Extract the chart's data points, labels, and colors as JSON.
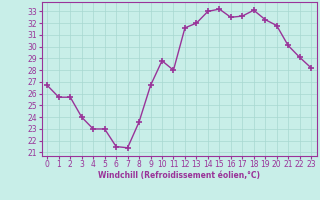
{
  "x": [
    0,
    1,
    2,
    3,
    4,
    5,
    6,
    7,
    8,
    9,
    10,
    11,
    12,
    13,
    14,
    15,
    16,
    17,
    18,
    19,
    20,
    21,
    22,
    23
  ],
  "y": [
    26.7,
    25.7,
    25.7,
    24.0,
    23.0,
    23.0,
    21.5,
    21.4,
    23.6,
    26.7,
    28.8,
    28.0,
    31.6,
    32.0,
    33.0,
    33.2,
    32.5,
    32.6,
    33.1,
    32.3,
    31.8,
    30.1,
    29.1,
    28.2
  ],
  "line_color": "#993399",
  "marker": "+",
  "markersize": 4,
  "linewidth": 1.0,
  "bg_color": "#c8eee8",
  "grid_color": "#a8d8d0",
  "xlabel": "Windchill (Refroidissement éolien,°C)",
  "xlabel_color": "#993399",
  "tick_color": "#993399",
  "yticks": [
    21,
    22,
    23,
    24,
    25,
    26,
    27,
    28,
    29,
    30,
    31,
    32,
    33
  ],
  "xticks": [
    0,
    1,
    2,
    3,
    4,
    5,
    6,
    7,
    8,
    9,
    10,
    11,
    12,
    13,
    14,
    15,
    16,
    17,
    18,
    19,
    20,
    21,
    22,
    23
  ],
  "ylim": [
    20.7,
    33.8
  ],
  "xlim": [
    -0.5,
    23.5
  ],
  "tick_fontsize": 5.5,
  "xlabel_fontsize": 5.5
}
